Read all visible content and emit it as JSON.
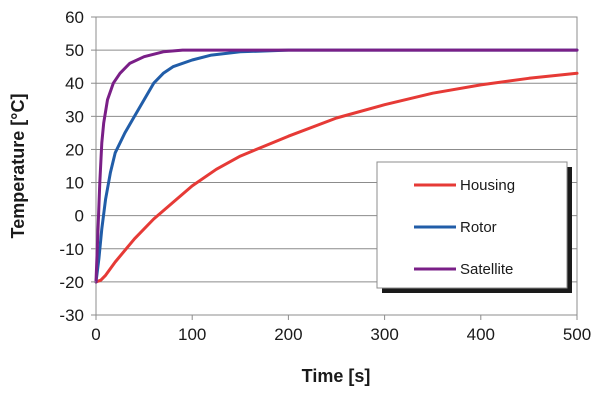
{
  "chart_data": {
    "type": "line",
    "title": "",
    "xlabel": "Time [s]",
    "ylabel": "Temperature [°C]",
    "xlim": [
      0,
      500
    ],
    "ylim": [
      -30,
      60
    ],
    "x_ticks": [
      0,
      100,
      200,
      300,
      400,
      500
    ],
    "y_ticks": [
      -30,
      -20,
      -10,
      0,
      10,
      20,
      30,
      40,
      50,
      60
    ],
    "grid": "horizontal",
    "legend_position": "bottom-right",
    "series": [
      {
        "name": "Housing",
        "color": "#e63a36",
        "points": [
          [
            0,
            -20
          ],
          [
            5,
            -19.5
          ],
          [
            10,
            -18
          ],
          [
            20,
            -14
          ],
          [
            40,
            -7
          ],
          [
            60,
            -1
          ],
          [
            80,
            4
          ],
          [
            100,
            9
          ],
          [
            125,
            14
          ],
          [
            150,
            18
          ],
          [
            175,
            21
          ],
          [
            200,
            24
          ],
          [
            250,
            29.5
          ],
          [
            300,
            33.5
          ],
          [
            350,
            37
          ],
          [
            400,
            39.5
          ],
          [
            450,
            41.5
          ],
          [
            500,
            43
          ]
        ]
      },
      {
        "name": "Rotor",
        "color": "#215da8",
        "points": [
          [
            0,
            -20
          ],
          [
            3,
            -13
          ],
          [
            6,
            -4
          ],
          [
            10,
            5
          ],
          [
            15,
            13
          ],
          [
            20,
            19
          ],
          [
            30,
            25
          ],
          [
            40,
            30
          ],
          [
            50,
            35
          ],
          [
            60,
            40
          ],
          [
            70,
            43
          ],
          [
            80,
            45
          ],
          [
            100,
            47
          ],
          [
            120,
            48.5
          ],
          [
            150,
            49.5
          ],
          [
            200,
            50
          ],
          [
            300,
            50
          ],
          [
            400,
            50
          ],
          [
            500,
            50
          ]
        ]
      },
      {
        "name": "Satellite",
        "color": "#7a1f87",
        "points": [
          [
            0,
            -20
          ],
          [
            2,
            -5
          ],
          [
            4,
            10
          ],
          [
            6,
            22
          ],
          [
            8,
            28
          ],
          [
            12,
            35
          ],
          [
            18,
            40
          ],
          [
            25,
            43
          ],
          [
            35,
            46
          ],
          [
            50,
            48
          ],
          [
            70,
            49.5
          ],
          [
            90,
            50
          ],
          [
            150,
            50
          ],
          [
            300,
            50
          ],
          [
            500,
            50
          ]
        ]
      }
    ]
  }
}
